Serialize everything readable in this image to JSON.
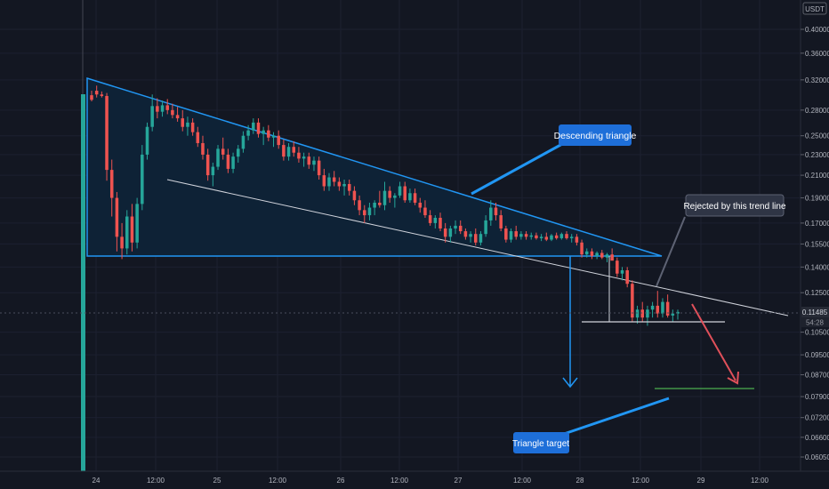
{
  "colors": {
    "background": "#131722",
    "grid": "#1c2030",
    "up": "#26a69a",
    "down": "#ef5350",
    "triangle": "#2196f3",
    "triangle_fill": "#0e2236",
    "trendline": "#d1d4dc",
    "arrow_red": "#e0505a",
    "target_line": "#4caf50",
    "callout_blue": "#1e6fd9",
    "callout_gray": "#2f3545",
    "axis_text": "#b2b5be"
  },
  "price_axis": {
    "currency": "USDT",
    "ticks": [
      "0.40000",
      "0.36000",
      "0.32000",
      "0.28000",
      "0.25000",
      "0.23000",
      "0.21000",
      "0.19000",
      "0.17000",
      "0.15500",
      "0.14000",
      "0.12500",
      "0.10500",
      "0.09500",
      "0.08700",
      "0.07900",
      "0.07200",
      "0.06600",
      "0.06050"
    ],
    "current_price": "0.11485",
    "countdown": "54:28"
  },
  "time_axis": {
    "ticks": [
      "24",
      "12:00",
      "25",
      "12:00",
      "26",
      "12:00",
      "27",
      "12:00",
      "28",
      "12:00",
      "29",
      "12:00"
    ]
  },
  "annotations": {
    "descending_triangle": "Descending triangle",
    "rejected": "Rejected by this trend line",
    "triangle_target": "Triangle target"
  },
  "chart_data": {
    "type": "candlestick",
    "title": "",
    "y_scale": "log",
    "ylim": [
      0.058,
      0.44
    ],
    "x_ticks": [
      "24",
      "12:00",
      "25",
      "12:00",
      "26",
      "12:00",
      "27",
      "12:00",
      "28",
      "12:00",
      "29",
      "12:00"
    ],
    "series": [
      {
        "values": [
          [
            0.299,
            0.305,
            0.291,
            0.293
          ],
          [
            0.305,
            0.312,
            0.296,
            0.3
          ],
          [
            0.3,
            0.304,
            0.296,
            0.298
          ],
          [
            0.298,
            0.302,
            0.205,
            0.215
          ],
          [
            0.215,
            0.225,
            0.175,
            0.19
          ],
          [
            0.19,
            0.195,
            0.15,
            0.16
          ],
          [
            0.16,
            0.17,
            0.145,
            0.152
          ],
          [
            0.152,
            0.18,
            0.148,
            0.175
          ],
          [
            0.175,
            0.185,
            0.15,
            0.156
          ],
          [
            0.156,
            0.19,
            0.152,
            0.185
          ],
          [
            0.185,
            0.24,
            0.18,
            0.23
          ],
          [
            0.23,
            0.265,
            0.225,
            0.26
          ],
          [
            0.26,
            0.3,
            0.255,
            0.285
          ],
          [
            0.285,
            0.295,
            0.27,
            0.278
          ],
          [
            0.278,
            0.292,
            0.272,
            0.286
          ],
          [
            0.286,
            0.294,
            0.275,
            0.28
          ],
          [
            0.28,
            0.288,
            0.27,
            0.274
          ],
          [
            0.274,
            0.284,
            0.266,
            0.27
          ],
          [
            0.27,
            0.28,
            0.255,
            0.26
          ],
          [
            0.26,
            0.272,
            0.25,
            0.265
          ],
          [
            0.265,
            0.27,
            0.25,
            0.254
          ],
          [
            0.254,
            0.26,
            0.238,
            0.242
          ],
          [
            0.242,
            0.25,
            0.225,
            0.23
          ],
          [
            0.23,
            0.236,
            0.205,
            0.21
          ],
          [
            0.21,
            0.222,
            0.2,
            0.218
          ],
          [
            0.218,
            0.24,
            0.215,
            0.236
          ],
          [
            0.236,
            0.248,
            0.225,
            0.23
          ],
          [
            0.23,
            0.236,
            0.212,
            0.216
          ],
          [
            0.216,
            0.232,
            0.212,
            0.228
          ],
          [
            0.228,
            0.24,
            0.222,
            0.236
          ],
          [
            0.236,
            0.255,
            0.232,
            0.25
          ],
          [
            0.25,
            0.262,
            0.245,
            0.256
          ],
          [
            0.256,
            0.27,
            0.252,
            0.265
          ],
          [
            0.265,
            0.27,
            0.248,
            0.252
          ],
          [
            0.252,
            0.26,
            0.24,
            0.256
          ],
          [
            0.256,
            0.262,
            0.244,
            0.248
          ],
          [
            0.248,
            0.254,
            0.238,
            0.25
          ],
          [
            0.25,
            0.256,
            0.236,
            0.24
          ],
          [
            0.24,
            0.246,
            0.224,
            0.228
          ],
          [
            0.228,
            0.242,
            0.224,
            0.238
          ],
          [
            0.238,
            0.244,
            0.228,
            0.232
          ],
          [
            0.232,
            0.238,
            0.222,
            0.226
          ],
          [
            0.226,
            0.232,
            0.218,
            0.228
          ],
          [
            0.228,
            0.232,
            0.216,
            0.22
          ],
          [
            0.22,
            0.228,
            0.214,
            0.224
          ],
          [
            0.224,
            0.228,
            0.206,
            0.21
          ],
          [
            0.21,
            0.216,
            0.196,
            0.2
          ],
          [
            0.2,
            0.212,
            0.196,
            0.208
          ],
          [
            0.208,
            0.214,
            0.2,
            0.204
          ],
          [
            0.204,
            0.208,
            0.196,
            0.2
          ],
          [
            0.2,
            0.206,
            0.192,
            0.202
          ],
          [
            0.202,
            0.206,
            0.192,
            0.196
          ],
          [
            0.196,
            0.2,
            0.184,
            0.188
          ],
          [
            0.188,
            0.192,
            0.176,
            0.18
          ],
          [
            0.18,
            0.184,
            0.17,
            0.176
          ],
          [
            0.176,
            0.186,
            0.172,
            0.182
          ],
          [
            0.182,
            0.188,
            0.176,
            0.186
          ],
          [
            0.186,
            0.196,
            0.182,
            0.184
          ],
          [
            0.184,
            0.204,
            0.18,
            0.196
          ],
          [
            0.196,
            0.2,
            0.186,
            0.19
          ],
          [
            0.19,
            0.194,
            0.182,
            0.192
          ],
          [
            0.192,
            0.204,
            0.19,
            0.2
          ],
          [
            0.2,
            0.204,
            0.186,
            0.188
          ],
          [
            0.188,
            0.198,
            0.186,
            0.194
          ],
          [
            0.194,
            0.198,
            0.184,
            0.186
          ],
          [
            0.186,
            0.19,
            0.178,
            0.182
          ],
          [
            0.182,
            0.188,
            0.174,
            0.176
          ],
          [
            0.176,
            0.18,
            0.168,
            0.17
          ],
          [
            0.17,
            0.176,
            0.166,
            0.174
          ],
          [
            0.174,
            0.178,
            0.164,
            0.166
          ],
          [
            0.166,
            0.17,
            0.156,
            0.16
          ],
          [
            0.16,
            0.168,
            0.156,
            0.166
          ],
          [
            0.166,
            0.172,
            0.162,
            0.168
          ],
          [
            0.168,
            0.172,
            0.162,
            0.164
          ],
          [
            0.164,
            0.166,
            0.158,
            0.16
          ],
          [
            0.16,
            0.164,
            0.156,
            0.162
          ],
          [
            0.162,
            0.166,
            0.154,
            0.156
          ],
          [
            0.156,
            0.164,
            0.154,
            0.162
          ],
          [
            0.162,
            0.176,
            0.16,
            0.172
          ],
          [
            0.172,
            0.188,
            0.168,
            0.182
          ],
          [
            0.182,
            0.186,
            0.172,
            0.176
          ],
          [
            0.176,
            0.18,
            0.164,
            0.166
          ],
          [
            0.166,
            0.168,
            0.156,
            0.158
          ],
          [
            0.158,
            0.166,
            0.156,
            0.164
          ],
          [
            0.164,
            0.168,
            0.158,
            0.16
          ],
          [
            0.16,
            0.164,
            0.158,
            0.162
          ],
          [
            0.162,
            0.164,
            0.158,
            0.16
          ],
          [
            0.16,
            0.163,
            0.158,
            0.161
          ],
          [
            0.161,
            0.163,
            0.158,
            0.159
          ],
          [
            0.159,
            0.162,
            0.157,
            0.16
          ],
          [
            0.16,
            0.163,
            0.157,
            0.158
          ],
          [
            0.158,
            0.162,
            0.157,
            0.161
          ],
          [
            0.161,
            0.163,
            0.158,
            0.159
          ],
          [
            0.159,
            0.163,
            0.158,
            0.162
          ],
          [
            0.162,
            0.164,
            0.158,
            0.159
          ],
          [
            0.159,
            0.162,
            0.156,
            0.16
          ],
          [
            0.16,
            0.162,
            0.154,
            0.156
          ],
          [
            0.156,
            0.158,
            0.146,
            0.148
          ],
          [
            0.148,
            0.152,
            0.146,
            0.15
          ],
          [
            0.15,
            0.152,
            0.145,
            0.147
          ],
          [
            0.147,
            0.15,
            0.145,
            0.149
          ],
          [
            0.149,
            0.151,
            0.145,
            0.146
          ],
          [
            0.146,
            0.149,
            0.143,
            0.148
          ],
          [
            0.148,
            0.152,
            0.146,
            0.144
          ],
          [
            0.144,
            0.146,
            0.134,
            0.136
          ],
          [
            0.136,
            0.14,
            0.132,
            0.138
          ],
          [
            0.138,
            0.14,
            0.128,
            0.13
          ],
          [
            0.13,
            0.132,
            0.11,
            0.112
          ],
          [
            0.112,
            0.118,
            0.109,
            0.116
          ],
          [
            0.116,
            0.12,
            0.11,
            0.112
          ],
          [
            0.112,
            0.118,
            0.108,
            0.116
          ],
          [
            0.116,
            0.12,
            0.112,
            0.118
          ],
          [
            0.118,
            0.126,
            0.112,
            0.114
          ],
          [
            0.114,
            0.122,
            0.112,
            0.12
          ],
          [
            0.12,
            0.124,
            0.112,
            0.113
          ],
          [
            0.113,
            0.116,
            0.11,
            0.114
          ],
          [
            0.114,
            0.116,
            0.111,
            0.1148
          ]
        ]
      }
    ],
    "drawings": {
      "triangle": [
        [
          0.33,
          0.151
        ],
        [
          0.147,
          0.151
        ]
      ],
      "support_line_from": 0.213,
      "target": 0.085,
      "horizontal_support": 0.11
    }
  }
}
